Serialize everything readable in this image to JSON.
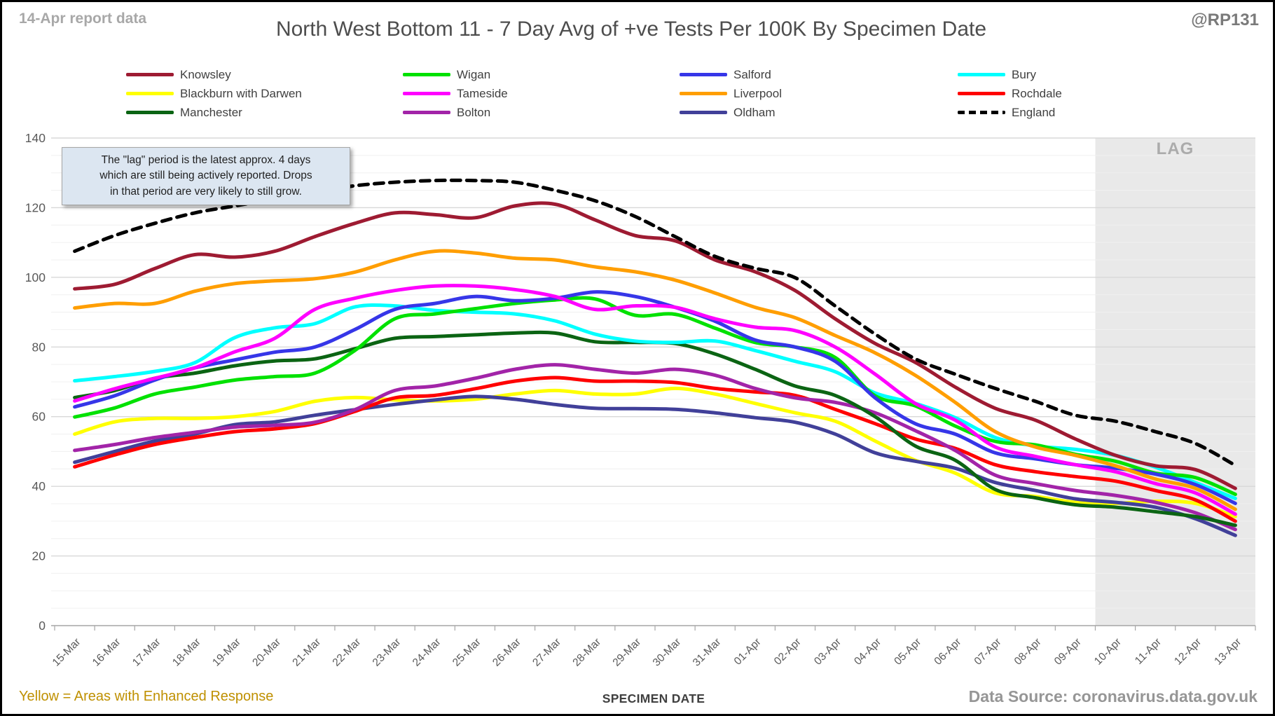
{
  "header": {
    "report_note": "14-Apr report data",
    "title": "North West Bottom 11 - 7 Day Avg of +ve Tests Per 100K By Specimen Date",
    "handle": "@RP131"
  },
  "annotation": {
    "text": "The \"lag\" period is the latest approx. 4 days\nwhich are still being actively reported. Drops\nin that period are very likely to still grow."
  },
  "footer": {
    "left_note": "Yellow = Areas with Enhanced Response",
    "right_source": "Data Source: coronavirus.data.gov.uk"
  },
  "legend_columns": [
    [
      "Knowsley",
      "Blackburn with Darwen",
      "Manchester"
    ],
    [
      "Wigan",
      "Tameside",
      "Bolton"
    ],
    [
      "Salford",
      "Liverpool",
      "Oldham"
    ],
    [
      "Bury",
      "Rochdale",
      "England"
    ]
  ],
  "chart_data": {
    "type": "line",
    "xlabel": "SPECIMEN DATE",
    "ylabel": "",
    "ylim": [
      0,
      140
    ],
    "ytick_step": 20,
    "minor_grid_step": 5,
    "grid": true,
    "legend_position": "top",
    "lag_region": {
      "from": "10-Apr",
      "to": "13-Apr",
      "label": "LAG"
    },
    "x": [
      "15-Mar",
      "16-Mar",
      "17-Mar",
      "18-Mar",
      "19-Mar",
      "20-Mar",
      "21-Mar",
      "22-Mar",
      "23-Mar",
      "24-Mar",
      "25-Mar",
      "26-Mar",
      "27-Mar",
      "28-Mar",
      "29-Mar",
      "30-Mar",
      "31-Mar",
      "01-Apr",
      "02-Apr",
      "03-Apr",
      "04-Apr",
      "05-Apr",
      "06-Apr",
      "07-Apr",
      "08-Apr",
      "09-Apr",
      "10-Apr",
      "11-Apr",
      "12-Apr",
      "13-Apr"
    ],
    "series": [
      {
        "name": "Knowsley",
        "color": "#9E1B32",
        "dash": false,
        "values": [
          96.7,
          98,
          102.5,
          106.5,
          105.8,
          107.5,
          111.7,
          115.5,
          118.5,
          118,
          117.1,
          120.5,
          121,
          116.5,
          112,
          110.5,
          105,
          101.6,
          96.2,
          88.1,
          81,
          75.6,
          68.5,
          62.4,
          59,
          53.6,
          48.9,
          45.9,
          44.8,
          39.4
        ]
      },
      {
        "name": "Blackburn with Darwen",
        "color": "#FFFF00",
        "dash": false,
        "values": [
          55,
          58.5,
          59.5,
          59.5,
          60,
          61.5,
          64.4,
          65.5,
          64.8,
          64.5,
          65,
          66.5,
          67.5,
          66.5,
          66.5,
          68.1,
          66.5,
          63.8,
          61.1,
          58.7,
          53,
          47.5,
          43.8,
          38.1,
          37.1,
          35.4,
          35.1,
          35.7,
          35.1,
          31.3
        ]
      },
      {
        "name": "Manchester",
        "color": "#0B6413",
        "dash": false,
        "values": [
          65.5,
          67.5,
          71,
          72.5,
          74.6,
          76,
          76.6,
          79.5,
          82.5,
          83,
          83.5,
          84,
          84,
          81.5,
          81.3,
          81,
          78,
          73.6,
          68.8,
          66.1,
          60,
          51.6,
          47.5,
          39.1,
          36.7,
          34.7,
          34,
          32.7,
          31.3,
          28.8
        ]
      },
      {
        "name": "Wigan",
        "color": "#00E100",
        "dash": false,
        "values": [
          59.9,
          62.5,
          66.5,
          68.5,
          70.5,
          71.5,
          72.5,
          79,
          88.1,
          89.5,
          91,
          92.5,
          93.5,
          93.8,
          89.1,
          89.4,
          85.4,
          81.3,
          80,
          77,
          66,
          63.1,
          57.3,
          52.9,
          51.9,
          49.2,
          47.2,
          43.8,
          42.5,
          37.7
        ]
      },
      {
        "name": "Tameside",
        "color": "#FF00FF",
        "dash": false,
        "values": [
          64.5,
          68,
          71,
          74,
          78.6,
          82.5,
          90.8,
          94,
          96.2,
          97.5,
          97.5,
          96.5,
          94.5,
          90.8,
          91.8,
          91.4,
          88.1,
          85.7,
          84.7,
          80,
          72.2,
          63.8,
          59,
          51.3,
          48.6,
          46.2,
          44.2,
          40.8,
          38.1,
          32
        ]
      },
      {
        "name": "Bolton",
        "color": "#A224A8",
        "dash": false,
        "values": [
          50.3,
          52,
          54,
          55.5,
          57,
          57.5,
          58.4,
          62,
          67.5,
          68.8,
          71,
          73.6,
          74.9,
          73.6,
          72.5,
          73.6,
          71.9,
          68.1,
          65.4,
          64.1,
          61.1,
          56,
          50.3,
          43.2,
          40.8,
          38.8,
          37.4,
          35.4,
          32.4,
          27.6
        ]
      },
      {
        "name": "Salford",
        "color": "#3636E8",
        "dash": false,
        "values": [
          62.8,
          66,
          70.5,
          74,
          76.3,
          78.5,
          80,
          85,
          90.8,
          92.5,
          94.5,
          93.3,
          94,
          95.8,
          94.5,
          91.4,
          87.4,
          82,
          80,
          75.9,
          65.4,
          58,
          55,
          49.6,
          47.9,
          46.2,
          45.2,
          43.5,
          40.5,
          35.1
        ]
      },
      {
        "name": "Liverpool",
        "color": "#FF9E00",
        "dash": false,
        "values": [
          91.2,
          92.5,
          92.5,
          96,
          98.2,
          99,
          99.6,
          101.5,
          105,
          107.5,
          107,
          105.5,
          105,
          103,
          101.6,
          99.2,
          95.5,
          91.4,
          88.4,
          83.3,
          78.3,
          71.9,
          64.1,
          55.7,
          51.3,
          48.9,
          45.9,
          42.1,
          39.4,
          33.4
        ]
      },
      {
        "name": "Oldham",
        "color": "#414099",
        "dash": false,
        "values": [
          46.9,
          50,
          53,
          55,
          57.7,
          58.5,
          60.4,
          62,
          63.5,
          64.8,
          65.8,
          65,
          63.5,
          62.4,
          62.3,
          62.1,
          61.1,
          59.7,
          58.4,
          55,
          49.6,
          47.2,
          45.2,
          41.1,
          38.8,
          36.4,
          35.4,
          34,
          30.7,
          25.9
        ]
      },
      {
        "name": "Bury",
        "color": "#00FFFF",
        "dash": false,
        "values": [
          70.3,
          71.5,
          73,
          75.5,
          82.7,
          85.5,
          86.7,
          91.5,
          91.8,
          90.5,
          90,
          89.5,
          87.5,
          83.7,
          81.7,
          81.3,
          81.7,
          79,
          75.9,
          72.9,
          66.8,
          63.8,
          59.7,
          54,
          51.6,
          50.6,
          48.9,
          45.5,
          41.1,
          36.5
        ]
      },
      {
        "name": "Rochdale",
        "color": "#FF0000",
        "dash": false,
        "values": [
          45.6,
          49,
          52,
          54,
          55.7,
          56.5,
          58,
          61.5,
          65.4,
          66.1,
          68,
          70.2,
          71.2,
          70.2,
          70.2,
          69.8,
          68.1,
          67.1,
          66.1,
          62.1,
          58,
          53.6,
          50.9,
          46.2,
          44.2,
          42.8,
          41.5,
          38.8,
          36.1,
          30
        ]
      },
      {
        "name": "England",
        "color": "#000000",
        "dash": true,
        "values": [
          107.5,
          112,
          115.5,
          118.5,
          120.5,
          122.5,
          124.5,
          126.3,
          127.3,
          127.8,
          127.8,
          127.3,
          125,
          122,
          117.5,
          111.7,
          106,
          102.6,
          99.9,
          91.8,
          83.7,
          76.6,
          72.2,
          68.1,
          64.4,
          60.4,
          58.7,
          55.7,
          52.3,
          46
        ]
      }
    ]
  }
}
